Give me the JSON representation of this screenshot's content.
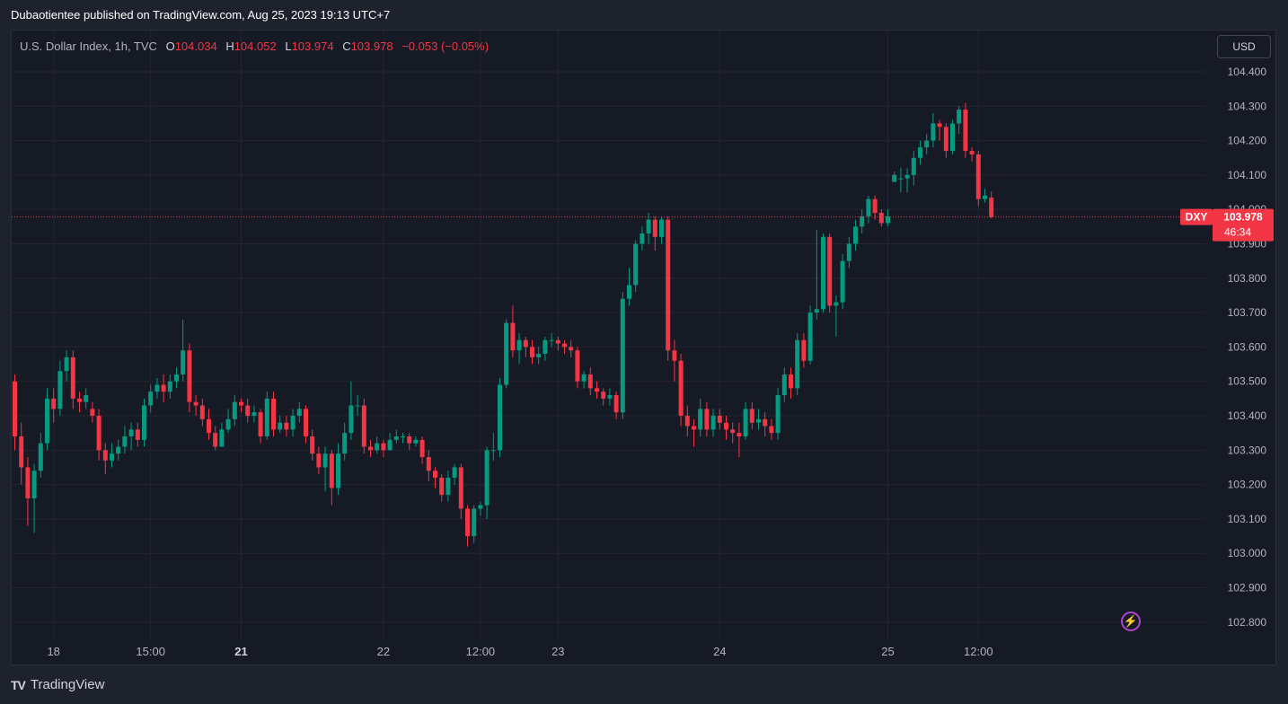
{
  "header": {
    "published": "Dubaotientee published on TradingView.com, Aug 25, 2023 19:13 UTC+7"
  },
  "legend": {
    "symbol": "U.S. Dollar Index, 1h, TVC",
    "o_label": "O",
    "o_value": "104.034",
    "h_label": "H",
    "h_value": "104.052",
    "l_label": "L",
    "l_value": "103.974",
    "c_label": "C",
    "c_value": "103.978",
    "change": "−0.053 (−0.05%)"
  },
  "currency_button": "USD",
  "price_tag": {
    "ticker": "DXY",
    "price": "103.978",
    "countdown": "46:34"
  },
  "footer": {
    "brand": "TradingView",
    "logo": "TV"
  },
  "icons": {
    "bolt": "lightning-icon"
  },
  "colors": {
    "up": "#089981",
    "down": "#f23645",
    "background": "#161a25",
    "grid": "#232632",
    "text": "#b2b5be"
  },
  "chart_data": {
    "type": "candlestick",
    "title": "U.S. Dollar Index, 1h, TVC",
    "ylim": [
      102.75,
      104.52
    ],
    "y_ticks": [
      "104.400",
      "104.300",
      "104.200",
      "104.100",
      "104.000",
      "103.900",
      "103.800",
      "103.700",
      "103.600",
      "103.500",
      "103.400",
      "103.300",
      "103.200",
      "103.100",
      "103.000",
      "102.900",
      "102.800"
    ],
    "x_ticks": [
      {
        "label": "18",
        "index": 6,
        "bold": false
      },
      {
        "label": "15:00",
        "index": 21,
        "bold": false
      },
      {
        "label": "21",
        "index": 35,
        "bold": true
      },
      {
        "label": "22",
        "index": 57,
        "bold": false
      },
      {
        "label": "12:00",
        "index": 72,
        "bold": false
      },
      {
        "label": "23",
        "index": 84,
        "bold": false
      },
      {
        "label": "24",
        "index": 109,
        "bold": false
      },
      {
        "label": "25",
        "index": 135,
        "bold": false
      },
      {
        "label": "12:00",
        "index": 149,
        "bold": false
      }
    ],
    "last_price": 103.978,
    "candles": [
      [
        103.5,
        103.34,
        103.52,
        103.3
      ],
      [
        103.34,
        103.25,
        103.38,
        103.2
      ],
      [
        103.25,
        103.16,
        103.28,
        103.08
      ],
      [
        103.16,
        103.24,
        103.26,
        103.06
      ],
      [
        103.24,
        103.32,
        103.35,
        103.22
      ],
      [
        103.32,
        103.45,
        103.48,
        103.3
      ],
      [
        103.45,
        103.42,
        103.48,
        103.38
      ],
      [
        103.42,
        103.53,
        103.56,
        103.4
      ],
      [
        103.53,
        103.57,
        103.59,
        103.5
      ],
      [
        103.57,
        103.45,
        103.59,
        103.42
      ],
      [
        103.45,
        103.44,
        103.47,
        103.41
      ],
      [
        103.44,
        103.46,
        103.48,
        103.42
      ],
      [
        103.42,
        103.4,
        103.44,
        103.38
      ],
      [
        103.4,
        103.3,
        103.42,
        103.27
      ],
      [
        103.3,
        103.27,
        103.32,
        103.23
      ],
      [
        103.27,
        103.29,
        103.32,
        103.25
      ],
      [
        103.29,
        103.31,
        103.33,
        103.27
      ],
      [
        103.31,
        103.34,
        103.37,
        103.29
      ],
      [
        103.34,
        103.36,
        103.38,
        103.3
      ],
      [
        103.36,
        103.33,
        103.38,
        103.31
      ],
      [
        103.33,
        103.43,
        103.45,
        103.31
      ],
      [
        103.43,
        103.47,
        103.49,
        103.41
      ],
      [
        103.47,
        103.49,
        103.51,
        103.45
      ],
      [
        103.49,
        103.47,
        103.52,
        103.44
      ],
      [
        103.47,
        103.5,
        103.52,
        103.45
      ],
      [
        103.5,
        103.52,
        103.54,
        103.48
      ],
      [
        103.52,
        103.59,
        103.68,
        103.5
      ],
      [
        103.59,
        103.44,
        103.61,
        103.41
      ],
      [
        103.44,
        103.43,
        103.46,
        103.4
      ],
      [
        103.43,
        103.39,
        103.45,
        103.37
      ],
      [
        103.39,
        103.35,
        103.42,
        103.33
      ],
      [
        103.35,
        103.31,
        103.37,
        103.3
      ],
      [
        103.31,
        103.36,
        103.38,
        103.32
      ],
      [
        103.36,
        103.39,
        103.42,
        103.35
      ],
      [
        103.39,
        103.44,
        103.46,
        103.37
      ],
      [
        103.44,
        103.43,
        103.45,
        103.41
      ],
      [
        103.43,
        103.4,
        103.45,
        103.38
      ],
      [
        103.4,
        103.41,
        103.43,
        103.38
      ],
      [
        103.41,
        103.34,
        103.42,
        103.32
      ],
      [
        103.34,
        103.45,
        103.47,
        103.33
      ],
      [
        103.45,
        103.36,
        103.47,
        103.34
      ],
      [
        103.36,
        103.38,
        103.4,
        103.35
      ],
      [
        103.38,
        103.36,
        103.4,
        103.34
      ],
      [
        103.36,
        103.4,
        103.42,
        103.34
      ],
      [
        103.4,
        103.42,
        103.44,
        103.38
      ],
      [
        103.42,
        103.34,
        103.43,
        103.32
      ],
      [
        103.34,
        103.29,
        103.36,
        103.27
      ],
      [
        103.29,
        103.25,
        103.31,
        103.23
      ],
      [
        103.25,
        103.29,
        103.31,
        103.18
      ],
      [
        103.29,
        103.19,
        103.3,
        103.14
      ],
      [
        103.19,
        103.29,
        103.32,
        103.17
      ],
      [
        103.29,
        103.35,
        103.38,
        103.27
      ],
      [
        103.35,
        103.43,
        103.5,
        103.33
      ],
      [
        103.43,
        103.43,
        103.46,
        103.4
      ],
      [
        103.43,
        103.31,
        103.45,
        103.29
      ],
      [
        103.31,
        103.3,
        103.33,
        103.28
      ],
      [
        103.3,
        103.32,
        103.34,
        103.29
      ],
      [
        103.32,
        103.3,
        103.33,
        103.28
      ],
      [
        103.3,
        103.33,
        103.35,
        103.3
      ],
      [
        103.33,
        103.34,
        103.36,
        103.32
      ],
      [
        103.34,
        103.34,
        103.35,
        103.32
      ],
      [
        103.34,
        103.32,
        103.35,
        103.3
      ],
      [
        103.32,
        103.33,
        103.34,
        103.31
      ],
      [
        103.33,
        103.28,
        103.34,
        103.26
      ],
      [
        103.28,
        103.24,
        103.3,
        103.21
      ],
      [
        103.24,
        103.22,
        103.25,
        103.19
      ],
      [
        103.22,
        103.17,
        103.23,
        103.15
      ],
      [
        103.17,
        103.22,
        103.24,
        103.15
      ],
      [
        103.22,
        103.25,
        103.26,
        103.2
      ],
      [
        103.25,
        103.13,
        103.26,
        103.1
      ],
      [
        103.13,
        103.05,
        103.14,
        103.02
      ],
      [
        103.05,
        103.13,
        103.14,
        103.03
      ],
      [
        103.13,
        103.14,
        103.15,
        103.11
      ],
      [
        103.14,
        103.3,
        103.31,
        103.1
      ],
      [
        103.3,
        103.3,
        103.35,
        103.27
      ],
      [
        103.3,
        103.49,
        103.51,
        103.28
      ],
      [
        103.49,
        103.67,
        103.68,
        103.48
      ],
      [
        103.67,
        103.59,
        103.72,
        103.57
      ],
      [
        103.59,
        103.62,
        103.64,
        103.55
      ],
      [
        103.62,
        103.6,
        103.63,
        103.57
      ],
      [
        103.6,
        103.57,
        103.62,
        103.55
      ],
      [
        103.57,
        103.58,
        103.6,
        103.55
      ],
      [
        103.58,
        103.62,
        103.63,
        103.56
      ],
      [
        103.62,
        103.62,
        103.64,
        103.6
      ],
      [
        103.62,
        103.61,
        103.63,
        103.59
      ],
      [
        103.61,
        103.6,
        103.62,
        103.58
      ],
      [
        103.6,
        103.59,
        103.62,
        103.57
      ],
      [
        103.59,
        103.5,
        103.6,
        103.48
      ],
      [
        103.5,
        103.52,
        103.53,
        103.48
      ],
      [
        103.52,
        103.48,
        103.54,
        103.46
      ],
      [
        103.48,
        103.47,
        103.5,
        103.45
      ],
      [
        103.47,
        103.45,
        103.48,
        103.43
      ],
      [
        103.45,
        103.46,
        103.48,
        103.43
      ],
      [
        103.46,
        103.41,
        103.47,
        103.39
      ],
      [
        103.41,
        103.74,
        103.76,
        103.39
      ],
      [
        103.74,
        103.78,
        103.83,
        103.72
      ],
      [
        103.78,
        103.9,
        103.91,
        103.76
      ],
      [
        103.9,
        103.93,
        103.95,
        103.88
      ],
      [
        103.93,
        103.97,
        103.99,
        103.9
      ],
      [
        103.97,
        103.92,
        103.98,
        103.88
      ],
      [
        103.92,
        103.97,
        103.98,
        103.9
      ],
      [
        103.97,
        103.59,
        103.98,
        103.56
      ],
      [
        103.59,
        103.56,
        103.62,
        103.5
      ],
      [
        103.56,
        103.4,
        103.58,
        103.37
      ],
      [
        103.4,
        103.37,
        103.43,
        103.34
      ],
      [
        103.37,
        103.36,
        103.39,
        103.31
      ],
      [
        103.36,
        103.42,
        103.45,
        103.34
      ],
      [
        103.42,
        103.36,
        103.44,
        103.34
      ],
      [
        103.36,
        103.4,
        103.42,
        103.34
      ],
      [
        103.4,
        103.38,
        103.42,
        103.36
      ],
      [
        103.38,
        103.36,
        103.4,
        103.33
      ],
      [
        103.36,
        103.35,
        103.38,
        103.32
      ],
      [
        103.35,
        103.34,
        103.38,
        103.28
      ],
      [
        103.34,
        103.42,
        103.44,
        103.33
      ],
      [
        103.42,
        103.38,
        103.44,
        103.36
      ],
      [
        103.38,
        103.39,
        103.42,
        103.36
      ],
      [
        103.39,
        103.37,
        103.41,
        103.34
      ],
      [
        103.37,
        103.35,
        103.39,
        103.33
      ],
      [
        103.35,
        103.46,
        103.48,
        103.33
      ],
      [
        103.46,
        103.52,
        103.54,
        103.44
      ],
      [
        103.52,
        103.48,
        103.54,
        103.45
      ],
      [
        103.48,
        103.62,
        103.64,
        103.46
      ],
      [
        103.62,
        103.56,
        103.64,
        103.54
      ],
      [
        103.56,
        103.7,
        103.72,
        103.55
      ],
      [
        103.7,
        103.71,
        103.94,
        103.68
      ],
      [
        103.71,
        103.92,
        103.93,
        103.7
      ],
      [
        103.92,
        103.72,
        103.93,
        103.7
      ],
      [
        103.72,
        103.73,
        103.75,
        103.63
      ],
      [
        103.73,
        103.85,
        103.87,
        103.71
      ],
      [
        103.85,
        103.9,
        103.92,
        103.83
      ],
      [
        103.9,
        103.95,
        103.97,
        103.88
      ],
      [
        103.95,
        103.98,
        104.0,
        103.93
      ],
      [
        103.98,
        104.03,
        104.04,
        103.96
      ],
      [
        104.03,
        103.99,
        104.04,
        103.97
      ],
      [
        103.99,
        103.96,
        104.0,
        103.95
      ],
      [
        103.96,
        103.98,
        104.0,
        103.95
      ],
      [
        104.08,
        104.1,
        104.11,
        104.08
      ],
      [
        104.09,
        104.09,
        104.12,
        104.05
      ],
      [
        104.09,
        104.1,
        104.12,
        104.05
      ],
      [
        104.1,
        104.15,
        104.17,
        104.07
      ],
      [
        104.15,
        104.18,
        104.2,
        104.13
      ],
      [
        104.18,
        104.2,
        104.22,
        104.16
      ],
      [
        104.2,
        104.25,
        104.28,
        104.18
      ],
      [
        104.25,
        104.24,
        104.26,
        104.2
      ],
      [
        104.24,
        104.17,
        104.25,
        104.15
      ],
      [
        104.17,
        104.25,
        104.26,
        104.16
      ],
      [
        104.25,
        104.29,
        104.3,
        104.22
      ],
      [
        104.29,
        104.17,
        104.31,
        104.15
      ],
      [
        104.17,
        104.16,
        104.18,
        104.14
      ],
      [
        104.16,
        104.03,
        104.17,
        104.01
      ],
      [
        104.03,
        104.04,
        104.06,
        104.02
      ],
      [
        104.034,
        103.978,
        104.052,
        103.974
      ]
    ]
  }
}
